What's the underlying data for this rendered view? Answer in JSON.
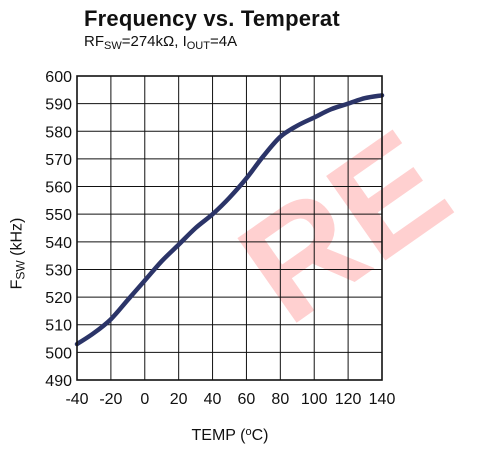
{
  "chart_data": {
    "type": "line",
    "title": "Frequency vs. Temperat",
    "subtitle": {
      "rf_prefix": "RF",
      "rf_sub": "SW",
      "rf_rest": "=274kΩ, I",
      "iout_sub": "OUT",
      "iout_rest": "=4A"
    },
    "ylabel": {
      "prefix": "F",
      "sub": "SW",
      "rest": " (kHz)"
    },
    "xlabel": {
      "prefix": "TEMP (",
      "sup": "o",
      "rest": "C)"
    },
    "xlim": [
      -40,
      140
    ],
    "ylim": [
      490,
      600
    ],
    "xticks": [
      -40,
      -20,
      0,
      20,
      40,
      60,
      80,
      100,
      120,
      140
    ],
    "xtick_labels": [
      "-40",
      "-20",
      "0",
      "20",
      "40",
      "60",
      "80",
      "100",
      "120",
      "140"
    ],
    "yticks": [
      490,
      500,
      510,
      520,
      530,
      540,
      550,
      560,
      570,
      580,
      590,
      600
    ],
    "ytick_labels": [
      "490",
      "500",
      "510",
      "520",
      "530",
      "540",
      "550",
      "560",
      "570",
      "580",
      "590",
      "600"
    ],
    "grid": true,
    "series": [
      {
        "color": "#2b3468",
        "x": [
          -40,
          -30,
          -20,
          -10,
          0,
          10,
          20,
          30,
          40,
          50,
          60,
          70,
          80,
          90,
          100,
          110,
          120,
          130,
          140
        ],
        "y": [
          503,
          507,
          512,
          519,
          526,
          533,
          539,
          545,
          550,
          556,
          563,
          571,
          578,
          582,
          585,
          588,
          590,
          592,
          593
        ]
      }
    ]
  },
  "watermark": {
    "text": "RE",
    "color": "#ff0000"
  }
}
